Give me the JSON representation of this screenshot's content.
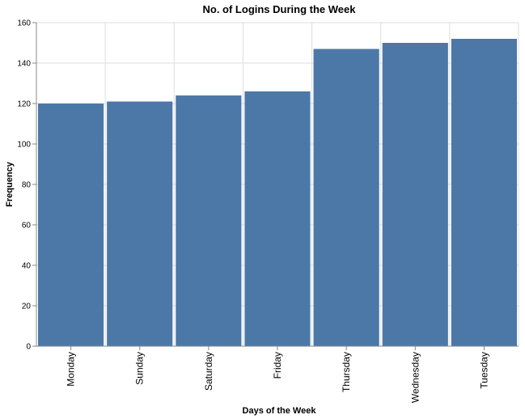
{
  "chart_data": {
    "type": "bar",
    "title": "No. of Logins During the Week",
    "xlabel": "Days of the Week",
    "ylabel": "Frequency",
    "categories": [
      "Monday",
      "Sunday",
      "Saturday",
      "Friday",
      "Thursday",
      "Wednesday",
      "Tuesday"
    ],
    "values": [
      120,
      121,
      124,
      126,
      147,
      150,
      152
    ],
    "ylim": [
      0,
      160
    ],
    "yticks": [
      "0",
      "20",
      "40",
      "60",
      "80",
      "100",
      "120",
      "140",
      "160"
    ],
    "grid": true,
    "bar_color": "#4c78a8"
  }
}
